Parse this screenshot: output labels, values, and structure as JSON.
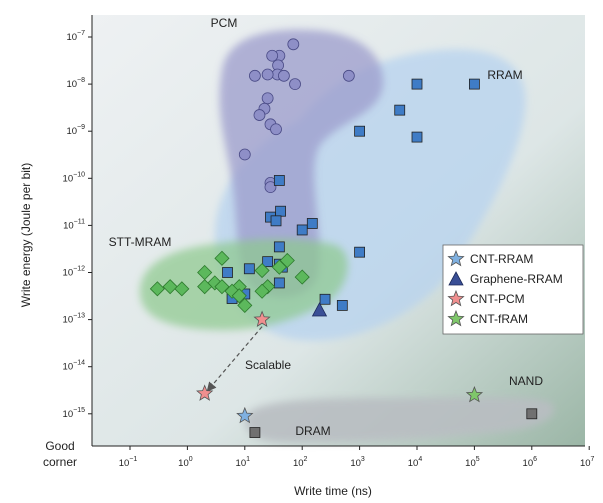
{
  "chart_data": {
    "type": "scatter",
    "xlabel": "Write time (ns)",
    "ylabel": "Write energy (Joule per bit)",
    "xscale": "log",
    "yscale": "log",
    "xlim": [
      0.1,
      10000000
    ],
    "ylim": [
      1e-16,
      5e-07
    ],
    "x_ticks": [
      {
        "exp": -1,
        "label_base": "10",
        "label_exp": "−1"
      },
      {
        "exp": 0,
        "label_base": "10",
        "label_exp": "0"
      },
      {
        "exp": 1,
        "label_base": "10",
        "label_exp": "1"
      },
      {
        "exp": 2,
        "label_base": "10",
        "label_exp": "2"
      },
      {
        "exp": 3,
        "label_base": "10",
        "label_exp": "3"
      },
      {
        "exp": 4,
        "label_base": "10",
        "label_exp": "4"
      },
      {
        "exp": 5,
        "label_base": "10",
        "label_exp": "5"
      },
      {
        "exp": 6,
        "label_base": "10",
        "label_exp": "6"
      },
      {
        "exp": 7,
        "label_base": "10",
        "label_exp": "7"
      }
    ],
    "y_ticks": [
      {
        "exp": -7,
        "label_base": "10",
        "label_exp": "−7"
      },
      {
        "exp": -8,
        "label_base": "10",
        "label_exp": "−8"
      },
      {
        "exp": -9,
        "label_base": "10",
        "label_exp": "−9"
      },
      {
        "exp": -10,
        "label_base": "10",
        "label_exp": "−10"
      },
      {
        "exp": -11,
        "label_base": "10",
        "label_exp": "−11"
      },
      {
        "exp": -12,
        "label_base": "10",
        "label_exp": "−12"
      },
      {
        "exp": -13,
        "label_base": "10",
        "label_exp": "−13"
      },
      {
        "exp": -14,
        "label_base": "10",
        "label_exp": "−14"
      },
      {
        "exp": -15,
        "label_base": "10",
        "label_exp": "−15"
      }
    ],
    "corner_label": [
      "Good",
      "corner"
    ],
    "regions": [
      {
        "label": "PCM",
        "color": "#8e8fc7"
      },
      {
        "label": "RRAM",
        "color": "#a9c9ea"
      },
      {
        "label": "STT-MRAM",
        "color": "#8dc98d"
      },
      {
        "label": "NAND",
        "color": "#b5babd"
      },
      {
        "label": "DRAM",
        "color": "#b5babd"
      },
      {
        "label": "Scalable",
        "color": "#555555"
      }
    ],
    "series": [
      {
        "category": "PCM",
        "marker": "circle",
        "color": "#8e8fc7",
        "points": [
          [
            40,
            4e-08
          ],
          [
            70,
            7e-08
          ],
          [
            30,
            4e-08
          ],
          [
            38,
            2.5e-08
          ],
          [
            37,
            1.6e-08
          ],
          [
            15,
            1.5e-08
          ],
          [
            25,
            1.6e-08
          ],
          [
            48,
            1.5e-08
          ],
          [
            75,
            1e-08
          ],
          [
            650,
            1.5e-08
          ],
          [
            25,
            5e-09
          ],
          [
            22,
            3e-09
          ],
          [
            18,
            2.2e-09
          ],
          [
            28,
            1.4e-09
          ],
          [
            35,
            1.1e-09
          ],
          [
            10,
            3.2e-10
          ],
          [
            28,
            8e-11
          ],
          [
            28,
            6.5e-11
          ]
        ]
      },
      {
        "category": "RRAM",
        "marker": "square",
        "color": "#3f7cc6",
        "points": [
          [
            10000,
            1e-08
          ],
          [
            100000,
            1e-08
          ],
          [
            5000,
            2.8e-09
          ],
          [
            1000,
            1e-09
          ],
          [
            10000,
            7.5e-10
          ],
          [
            40,
            9e-11
          ],
          [
            42,
            2e-11
          ],
          [
            28,
            1.5e-11
          ],
          [
            35,
            1.25e-11
          ],
          [
            150,
            1.1e-11
          ],
          [
            100,
            8e-12
          ],
          [
            1000,
            2.7e-12
          ],
          [
            40,
            3.5e-12
          ],
          [
            40,
            1.5e-12
          ],
          [
            25,
            1.7e-12
          ],
          [
            45,
            1.3e-12
          ],
          [
            5,
            1e-12
          ],
          [
            12,
            1.2e-12
          ],
          [
            40,
            6e-13
          ],
          [
            10,
            3.5e-13
          ],
          [
            6,
            2.8e-13
          ],
          [
            250,
            2.7e-13
          ],
          [
            500,
            2e-13
          ]
        ]
      },
      {
        "category": "STT-MRAM",
        "marker": "diamond",
        "color": "#5cb85c",
        "points": [
          [
            4,
            2e-12
          ],
          [
            2,
            1e-12
          ],
          [
            20,
            1.1e-12
          ],
          [
            55,
            1.8e-12
          ],
          [
            40,
            1.3e-12
          ],
          [
            100,
            8e-13
          ],
          [
            3,
            6e-13
          ],
          [
            8,
            5e-13
          ],
          [
            2,
            5e-13
          ],
          [
            4,
            5e-13
          ],
          [
            25,
            5e-13
          ],
          [
            0.5,
            5e-13
          ],
          [
            0.3,
            4.5e-13
          ],
          [
            0.8,
            4.5e-13
          ],
          [
            6,
            4e-13
          ],
          [
            20,
            4e-13
          ],
          [
            8,
            3.2e-13
          ],
          [
            10,
            2e-13
          ]
        ]
      },
      {
        "category": "CNT-RRAM",
        "marker": "star",
        "color": "#7fb0e0",
        "points": [
          [
            10,
            9e-16
          ]
        ]
      },
      {
        "category": "Graphene-RRAM",
        "marker": "triangle",
        "color": "#3a4f96",
        "points": [
          [
            200,
            1.6e-13
          ]
        ]
      },
      {
        "category": "CNT-PCM",
        "marker": "star",
        "color": "#f08f8f",
        "points": [
          [
            2,
            2.7e-15
          ],
          [
            20,
            1e-13
          ]
        ]
      },
      {
        "category": "CNT-fRAM",
        "marker": "star",
        "color": "#7fc76a",
        "points": [
          [
            100000,
            2.5e-15
          ]
        ]
      },
      {
        "category": "NAND",
        "marker": "square",
        "color": "#707070",
        "points": [
          [
            1000000,
            1e-15
          ]
        ]
      },
      {
        "category": "DRAM",
        "marker": "square",
        "color": "#707070",
        "points": [
          [
            15,
            4e-16
          ]
        ]
      }
    ],
    "legend": {
      "placement": "right",
      "entries": [
        {
          "label": "CNT-RRAM",
          "marker": "star",
          "color": "#7fb0e0"
        },
        {
          "label": "Graphene-RRAM",
          "marker": "triangle",
          "color": "#3a4f96"
        },
        {
          "label": "CNT-PCM",
          "marker": "star",
          "color": "#f08f8f"
        },
        {
          "label": "CNT-fRAM",
          "marker": "star",
          "color": "#7fc76a"
        }
      ]
    },
    "arrow": {
      "from": [
        20,
        1e-13
      ],
      "to": [
        2.3,
        3.2e-15
      ],
      "style": "dashed"
    }
  }
}
